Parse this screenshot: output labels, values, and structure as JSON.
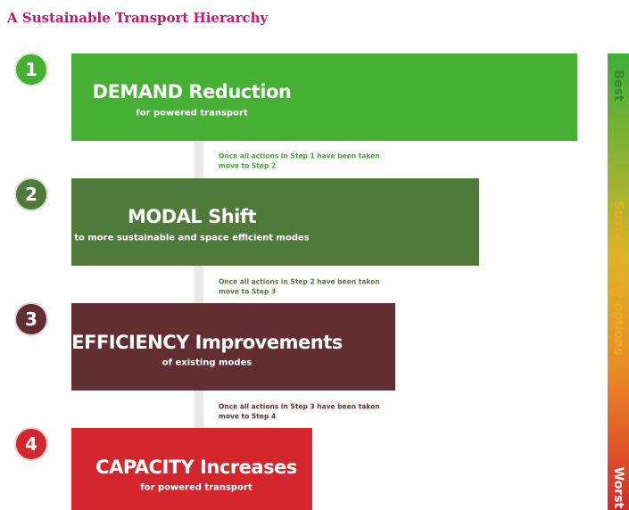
{
  "title": "A Sustainable Transport Hierarchy",
  "steps": [
    {
      "number": "1",
      "title": "DEMAND Reduction",
      "subtitle": "for powered transport"
    },
    {
      "number": "2",
      "title": "MODAL Shift",
      "subtitle": "to more sustainable and space efficient modes"
    },
    {
      "number": "3",
      "title": "EFFICIENCY Improvements",
      "subtitle": "of existing modes"
    },
    {
      "number": "4",
      "title": "CAPACITY Increases",
      "subtitle": "for powered transport"
    }
  ],
  "transitions": [
    {
      "line1": "Once all actions in Step 1 have been taken",
      "line2": "move to Step 2"
    },
    {
      "line1": "Once all actions in Step 2 have been taken",
      "line2": "move to Step 3"
    },
    {
      "line1": "Once all actions in Step 3 have been taken",
      "line2": "move to Step 4"
    }
  ],
  "scale": {
    "best": "Best",
    "label": "Sustainability options",
    "worst": "Worst"
  }
}
